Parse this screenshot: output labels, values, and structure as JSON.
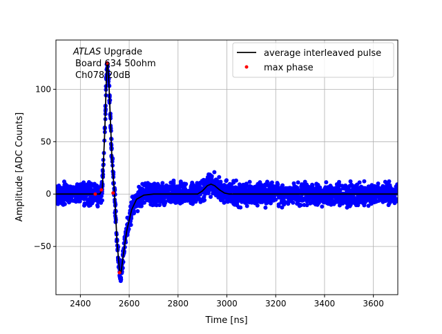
{
  "chart_data": {
    "type": "scatter",
    "xlabel": "Time [ns]",
    "ylabel": "Amplitude [ADC Counts]",
    "xlim": [
      2300,
      3700
    ],
    "ylim": [
      -96,
      147
    ],
    "xticks": [
      2400,
      2600,
      2800,
      3000,
      3200,
      3400,
      3600
    ],
    "yticks": [
      -50,
      0,
      50,
      100
    ],
    "grid": true,
    "legend_placement": "top-right",
    "annotation": {
      "italic": "ATLAS",
      "rest": " Upgrade",
      "line2": "Board 634 50ohm",
      "line3": "Ch078 20dB"
    },
    "series": [
      {
        "name": "",
        "kind": "scatter",
        "color": "#0000ff",
        "description_noise_adc": 11
      },
      {
        "name": "average interleaved pulse",
        "kind": "line",
        "color": "#000000",
        "points": [
          [
            2300,
            0
          ],
          [
            2480,
            0
          ],
          [
            2490,
            5
          ],
          [
            2500,
            60
          ],
          [
            2508,
            120
          ],
          [
            2512,
            125
          ],
          [
            2518,
            100
          ],
          [
            2530,
            30
          ],
          [
            2540,
            0
          ],
          [
            2550,
            -45
          ],
          [
            2560,
            -72
          ],
          [
            2566,
            -76
          ],
          [
            2575,
            -60
          ],
          [
            2590,
            -35
          ],
          [
            2610,
            -15
          ],
          [
            2630,
            -5
          ],
          [
            2660,
            -1
          ],
          [
            2700,
            0
          ],
          [
            2880,
            0
          ],
          [
            2900,
            3
          ],
          [
            2920,
            8
          ],
          [
            2935,
            9.5
          ],
          [
            2950,
            8
          ],
          [
            2970,
            4
          ],
          [
            2990,
            1
          ],
          [
            3010,
            0
          ],
          [
            3700,
            0
          ]
        ]
      },
      {
        "name": "max phase",
        "kind": "scatter",
        "color": "#ff0000",
        "points": [
          [
            2461,
            0
          ],
          [
            2486,
            4
          ],
          [
            2509,
            125
          ],
          [
            2534,
            1
          ],
          [
            2560,
            -75
          ]
        ]
      }
    ]
  }
}
